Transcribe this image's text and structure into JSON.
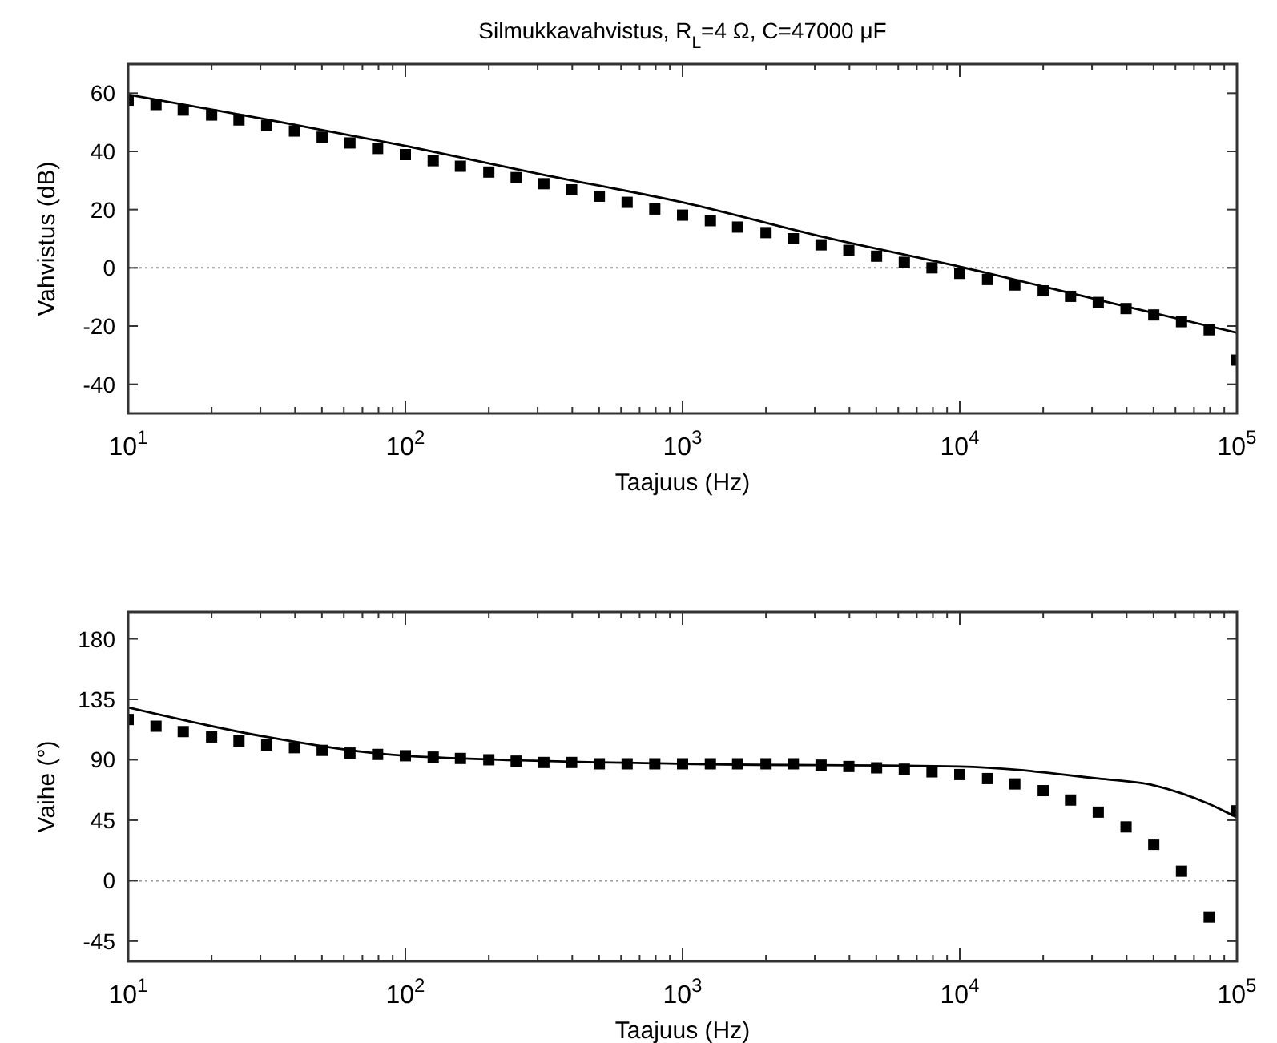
{
  "chart_data": [
    {
      "type": "scatter",
      "title": "Silmukkavahvistus, R$_{L}$=4 Ω, C=47000 μF",
      "xlabel": "Taajuus (Hz)",
      "ylabel": "Vahvistus (dB)",
      "log": "x",
      "xlim": [
        10,
        100000
      ],
      "ylim": [
        -50,
        70
      ],
      "xticks": [
        {
          "value": 10,
          "label": "10$^{1}$"
        },
        {
          "value": 100,
          "label": "10$^{2}$"
        },
        {
          "value": 1000,
          "label": "10$^{3}$"
        },
        {
          "value": 10000,
          "label": "10$^{4}$"
        },
        {
          "value": 100000,
          "label": "10$^{5}$"
        }
      ],
      "yticks": [
        -40,
        -20,
        0,
        20,
        40,
        60
      ],
      "ref_lines": [
        {
          "axis": "y",
          "value": 0,
          "line_style": "dotted",
          "color": "#999999"
        }
      ],
      "x": [
        10,
        12.6,
        15.8,
        20,
        25.1,
        31.6,
        39.8,
        50.1,
        63.1,
        79.4,
        100,
        126,
        158,
        200,
        251,
        316,
        398,
        501,
        631,
        794,
        1000,
        1260,
        1580,
        2000,
        2510,
        3160,
        3980,
        5010,
        6310,
        7940,
        10000,
        12600,
        15800,
        20000,
        25100,
        31600,
        39800,
        50100,
        63100,
        79400,
        100000
      ],
      "series": [
        {
          "color": "#000000",
          "marker": "square",
          "values": [
            57.6,
            56.1,
            54.2,
            52.5,
            50.8,
            48.9,
            47.0,
            44.9,
            42.9,
            41.0,
            38.9,
            36.8,
            34.9,
            32.9,
            31.0,
            28.9,
            26.8,
            24.6,
            22.5,
            20.2,
            18.1,
            16.2,
            14.0,
            12.1,
            10.0,
            7.9,
            6.0,
            4.0,
            1.9,
            0,
            -1.9,
            -4.0,
            -5.9,
            -7.9,
            -9.8,
            -11.9,
            -14.0,
            -16.2,
            -18.5,
            -21.3,
            -31.7
          ]
        },
        {
          "type": "line",
          "color": "#000000",
          "marker": "none",
          "line_style": "solid",
          "x": [
            10,
            31.6,
            100,
            316,
            1000,
            3160,
            10000,
            31600,
            100000
          ],
          "values": [
            59.5,
            51.0,
            41.9,
            31.9,
            22.5,
            10.8,
            0.4,
            -11.0,
            -22.3
          ]
        }
      ]
    },
    {
      "type": "scatter",
      "xlabel": "Taajuus (Hz)",
      "ylabel": "Vaihe (°)",
      "log": "x",
      "xlim": [
        10,
        100000
      ],
      "ylim": [
        -60,
        200
      ],
      "xticks": [
        {
          "value": 10,
          "label": "10$^{1}$"
        },
        {
          "value": 100,
          "label": "10$^{2}$"
        },
        {
          "value": 1000,
          "label": "10$^{3}$"
        },
        {
          "value": 10000,
          "label": "10$^{4}$"
        },
        {
          "value": 100000,
          "label": "10$^{5}$"
        }
      ],
      "yticks": [
        -45,
        0,
        45,
        90,
        135,
        180
      ],
      "ref_lines": [
        {
          "axis": "y",
          "value": 0,
          "line_style": "dotted",
          "color": "#999999"
        }
      ],
      "x": [
        10,
        12.6,
        15.8,
        20,
        25.1,
        31.6,
        39.8,
        50.1,
        63.1,
        79.4,
        100,
        126,
        158,
        200,
        251,
        316,
        398,
        501,
        631,
        794,
        1000,
        1260,
        1580,
        2000,
        2510,
        3160,
        3980,
        5010,
        6310,
        7940,
        10000,
        12600,
        15800,
        20000,
        25100,
        31600,
        39800,
        50100,
        63100,
        79400,
        100000
      ],
      "series": [
        {
          "color": "#000000",
          "marker": "square",
          "values": [
            120,
            115,
            111,
            107,
            104,
            101,
            99,
            97,
            95,
            94,
            93,
            92,
            91,
            90,
            89,
            88,
            88,
            87,
            87,
            87,
            87,
            87,
            87,
            87,
            87,
            86,
            85,
            84,
            83,
            81,
            79,
            76,
            72,
            67,
            60,
            51,
            40,
            27,
            7,
            -27,
            52
          ]
        },
        {
          "type": "line",
          "color": "#000000",
          "marker": "none",
          "line_style": "solid",
          "x": [
            10,
            31.6,
            100,
            1000,
            10000,
            31600,
            50100,
            63100,
            79400,
            100000
          ],
          "values": [
            129,
            107,
            93,
            87,
            85,
            76,
            71,
            65,
            57,
            47
          ]
        }
      ]
    }
  ]
}
